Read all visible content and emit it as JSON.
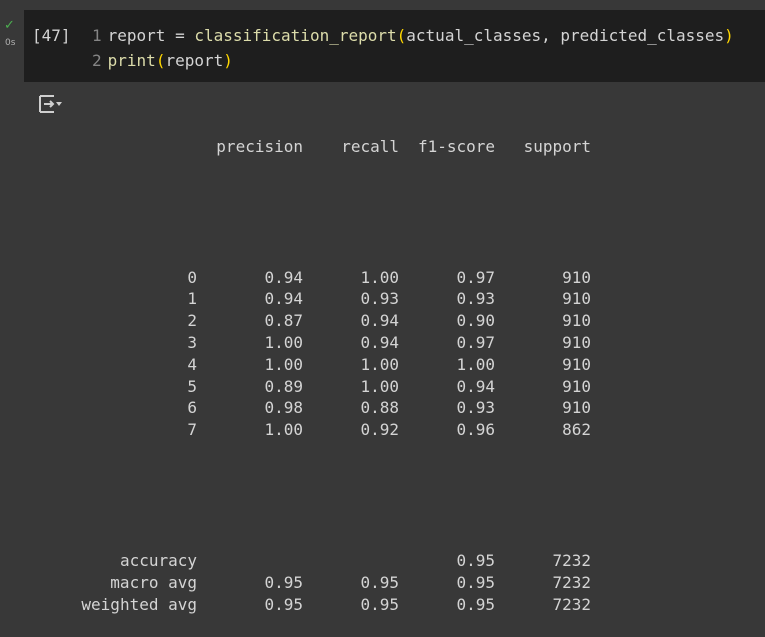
{
  "cell": {
    "status_icon": "check-icon",
    "exec_time": "0s",
    "exec_count": "[47]",
    "code_lines": [
      {
        "num": "1",
        "pre": "report = ",
        "fn": "classification_report",
        "open": "(",
        "args": "actual_classes, predicted_classes",
        "close": ")"
      },
      {
        "num": "2",
        "pre": "",
        "fn": "print",
        "open": "(",
        "args": "report",
        "close": ")"
      }
    ]
  },
  "output": {
    "icon": "output-toggle-icon",
    "headers": [
      "precision",
      "recall",
      "f1-score",
      "support"
    ],
    "rows": [
      {
        "label": "0",
        "precision": "0.94",
        "recall": "1.00",
        "f1": "0.97",
        "support": "910"
      },
      {
        "label": "1",
        "precision": "0.94",
        "recall": "0.93",
        "f1": "0.93",
        "support": "910"
      },
      {
        "label": "2",
        "precision": "0.87",
        "recall": "0.94",
        "f1": "0.90",
        "support": "910"
      },
      {
        "label": "3",
        "precision": "1.00",
        "recall": "0.94",
        "f1": "0.97",
        "support": "910"
      },
      {
        "label": "4",
        "precision": "1.00",
        "recall": "1.00",
        "f1": "1.00",
        "support": "910"
      },
      {
        "label": "5",
        "precision": "0.89",
        "recall": "1.00",
        "f1": "0.94",
        "support": "910"
      },
      {
        "label": "6",
        "precision": "0.98",
        "recall": "0.88",
        "f1": "0.93",
        "support": "910"
      },
      {
        "label": "7",
        "precision": "1.00",
        "recall": "0.92",
        "f1": "0.96",
        "support": "862"
      }
    ],
    "summary": [
      {
        "label": "accuracy",
        "precision": "",
        "recall": "",
        "f1": "0.95",
        "support": "7232"
      },
      {
        "label": "macro avg",
        "precision": "0.95",
        "recall": "0.95",
        "f1": "0.95",
        "support": "7232"
      },
      {
        "label": "weighted avg",
        "precision": "0.95",
        "recall": "0.95",
        "f1": "0.95",
        "support": "7232"
      }
    ]
  }
}
